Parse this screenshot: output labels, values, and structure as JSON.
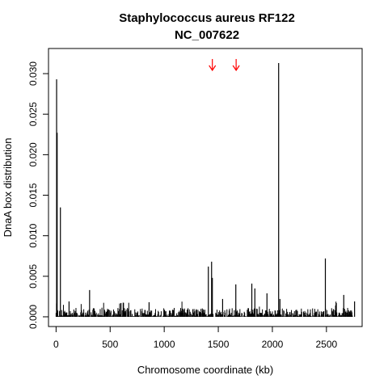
{
  "chart_data": {
    "type": "bar",
    "title": "Staphylococcus aureus RF122",
    "subtitle": "NC_007622",
    "xlabel": "Chromosome coordinate (kb)",
    "ylabel": "DnaA box distribution",
    "xlim": [
      -70,
      2830
    ],
    "ylim": [
      -0.0012,
      0.0331
    ],
    "x_ticks": [
      0,
      500,
      1000,
      1500,
      2000,
      2500
    ],
    "y_ticks": [
      0.0,
      0.005,
      0.01,
      0.015,
      0.02,
      0.025,
      0.03
    ],
    "y_tick_labels": [
      "0.000",
      "0.005",
      "0.010",
      "0.015",
      "0.020",
      "0.025",
      "0.030"
    ],
    "grid": false,
    "legend": "none",
    "bar_color": "#000000",
    "markers": {
      "color": "#ff0000",
      "shape": "down-arrow",
      "x": [
        1445,
        1665
      ]
    },
    "major_peaks": [
      {
        "x": 5,
        "y": 0.0293
      },
      {
        "x": 10,
        "y": 0.0227
      },
      {
        "x": 40,
        "y": 0.0135
      },
      {
        "x": 1408,
        "y": 0.0062
      },
      {
        "x": 1438,
        "y": 0.0068
      },
      {
        "x": 1445,
        "y": 0.0048
      },
      {
        "x": 1662,
        "y": 0.004
      },
      {
        "x": 1810,
        "y": 0.0041
      },
      {
        "x": 1838,
        "y": 0.0035
      },
      {
        "x": 2058,
        "y": 0.0313
      },
      {
        "x": 2490,
        "y": 0.0072
      },
      {
        "x": 310,
        "y": 0.0033
      },
      {
        "x": 1950,
        "y": 0.0029
      },
      {
        "x": 2070,
        "y": 0.0022
      },
      {
        "x": 2660,
        "y": 0.0027
      },
      {
        "x": 1540,
        "y": 0.0022
      },
      {
        "x": 600,
        "y": 0.0017
      },
      {
        "x": 2760,
        "y": 0.0019
      },
      {
        "x": 120,
        "y": 0.0019
      },
      {
        "x": 860,
        "y": 0.0018
      }
    ],
    "baseline": {
      "x_start": 0,
      "x_end": 2742,
      "bin_kb": 4,
      "typical_max": 0.0011
    }
  }
}
